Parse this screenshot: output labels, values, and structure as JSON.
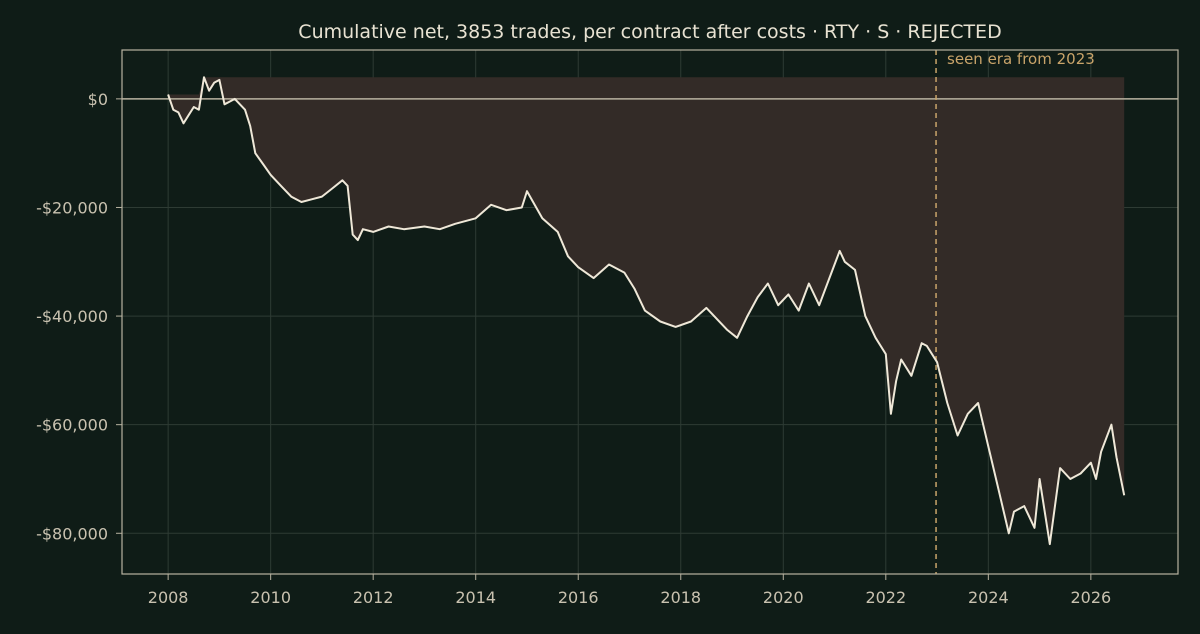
{
  "colors": {
    "background": "#0f1c17",
    "text": "#e8e2d2",
    "tick_text": "#c9c2b0",
    "axis": "#b8b2a0",
    "grid": "#2e3b34",
    "line": "#efe8d8",
    "drawdown_fill": "#332b27",
    "annotation": "#c9a46a",
    "zero_line": "#b8b2a0"
  },
  "chart_data": {
    "type": "line",
    "title": "Cumulative net, 3853 trades, per contract after costs  ·  RTY · S · REJECTED",
    "xlabel": "",
    "ylabel": "",
    "xlim": [
      2007.1,
      2027.7
    ],
    "ylim": [
      -87500,
      9000
    ],
    "x_ticks": [
      2008,
      2010,
      2012,
      2014,
      2016,
      2018,
      2020,
      2022,
      2024,
      2026
    ],
    "x_tick_labels": [
      "2008",
      "2010",
      "2012",
      "2014",
      "2016",
      "2018",
      "2020",
      "2022",
      "2024",
      "2026"
    ],
    "y_ticks": [
      0,
      -20000,
      -40000,
      -60000,
      -80000
    ],
    "y_tick_labels": [
      "$0",
      "-$20,000",
      "-$40,000",
      "-$60,000",
      "-$80,000"
    ],
    "grid": true,
    "zero_line": 0,
    "shade_between_running_max": true,
    "vline": {
      "x": 2022.98,
      "label": "seen era from 2023",
      "style": "dashed"
    },
    "series": [
      {
        "x": [
          2008.0,
          2008.1,
          2008.2,
          2008.3,
          2008.4,
          2008.5,
          2008.6,
          2008.7,
          2008.8,
          2008.9,
          2009.0,
          2009.1,
          2009.2,
          2009.3,
          2009.5,
          2009.6,
          2009.7,
          2009.85,
          2010.0,
          2010.2,
          2010.4,
          2010.6,
          2010.8,
          2011.0,
          2011.2,
          2011.4,
          2011.5,
          2011.6,
          2011.7,
          2011.8,
          2012.0,
          2012.3,
          2012.6,
          2013.0,
          2013.3,
          2013.6,
          2014.0,
          2014.3,
          2014.6,
          2014.9,
          2015.0,
          2015.3,
          2015.6,
          2015.8,
          2016.0,
          2016.3,
          2016.6,
          2016.9,
          2017.1,
          2017.3,
          2017.6,
          2017.9,
          2018.2,
          2018.5,
          2018.9,
          2019.1,
          2019.3,
          2019.5,
          2019.7,
          2019.9,
          2020.1,
          2020.3,
          2020.5,
          2020.7,
          2020.9,
          2021.1,
          2021.2,
          2021.4,
          2021.6,
          2021.8,
          2022.0,
          2022.1,
          2022.2,
          2022.3,
          2022.5,
          2022.7,
          2022.8,
          2023.0,
          2023.2,
          2023.4,
          2023.6,
          2023.8,
          2023.9,
          2024.0,
          2024.2,
          2024.4,
          2024.5,
          2024.7,
          2024.9,
          2025.0,
          2025.2,
          2025.4,
          2025.6,
          2025.8,
          2026.0,
          2026.1,
          2026.2,
          2026.4,
          2026.5,
          2026.65
        ],
        "values": [
          800,
          -2000,
          -2500,
          -4500,
          -3000,
          -1500,
          -2000,
          4000,
          1500,
          3000,
          3500,
          -1000,
          -500,
          0,
          -2000,
          -5000,
          -10000,
          -12000,
          -14000,
          -16000,
          -18000,
          -19000,
          -18500,
          -18000,
          -16500,
          -15000,
          -16000,
          -25000,
          -26000,
          -24000,
          -24500,
          -23500,
          -24000,
          -23500,
          -24000,
          -23000,
          -22000,
          -19500,
          -20500,
          -20000,
          -17000,
          -22000,
          -24500,
          -29000,
          -31000,
          -33000,
          -30500,
          -32000,
          -35000,
          -39000,
          -41000,
          -42000,
          -41000,
          -38500,
          -42500,
          -44000,
          -40000,
          -36500,
          -34000,
          -38000,
          -36000,
          -39000,
          -34000,
          -38000,
          -33000,
          -28000,
          -30000,
          -31500,
          -40000,
          -44000,
          -47000,
          -58000,
          -52000,
          -48000,
          -51000,
          -45000,
          -45500,
          -48500,
          -56000,
          -62000,
          -58000,
          -56000,
          -60000,
          -64000,
          -72000,
          -80000,
          -76000,
          -75000,
          -79000,
          -70000,
          -82000,
          -68000,
          -70000,
          -69000,
          -67000,
          -70000,
          -65000,
          -60000,
          -66000,
          -73000
        ]
      }
    ]
  }
}
